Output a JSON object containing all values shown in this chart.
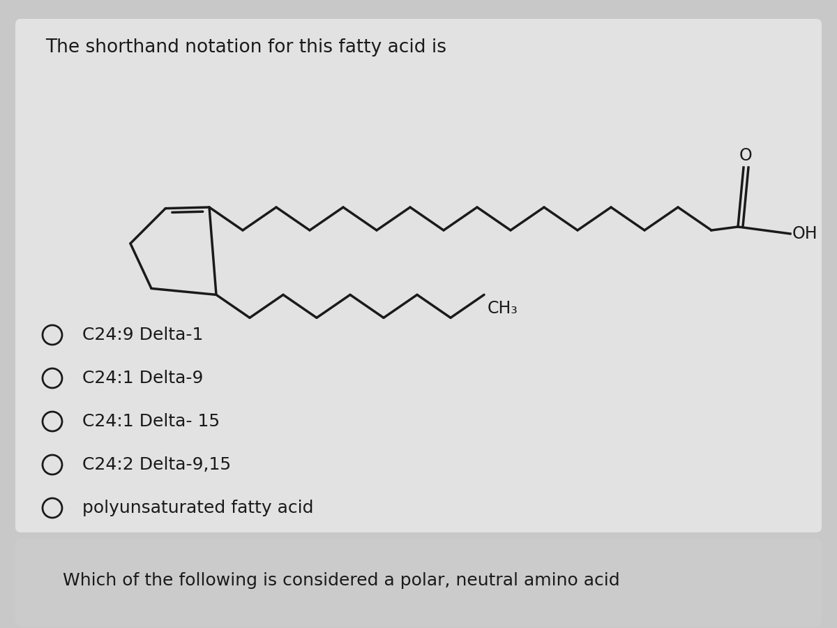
{
  "title": "The shorthand notation for this fatty acid is",
  "options": [
    "C24:9 Delta-1",
    "C24:1 Delta-9",
    "C24:1 Delta- 15",
    "C24:2 Delta-9,15",
    "polyunsaturated fatty acid"
  ],
  "footer": "Which of the following is considered a polar, neutral amino acid",
  "background_main": "#c8c8c8",
  "background_card": "#e2e2e2",
  "background_footer": "#cbcbcb",
  "text_color": "#1a1a1a",
  "line_color": "#1a1a1a",
  "line_width": 2.5
}
